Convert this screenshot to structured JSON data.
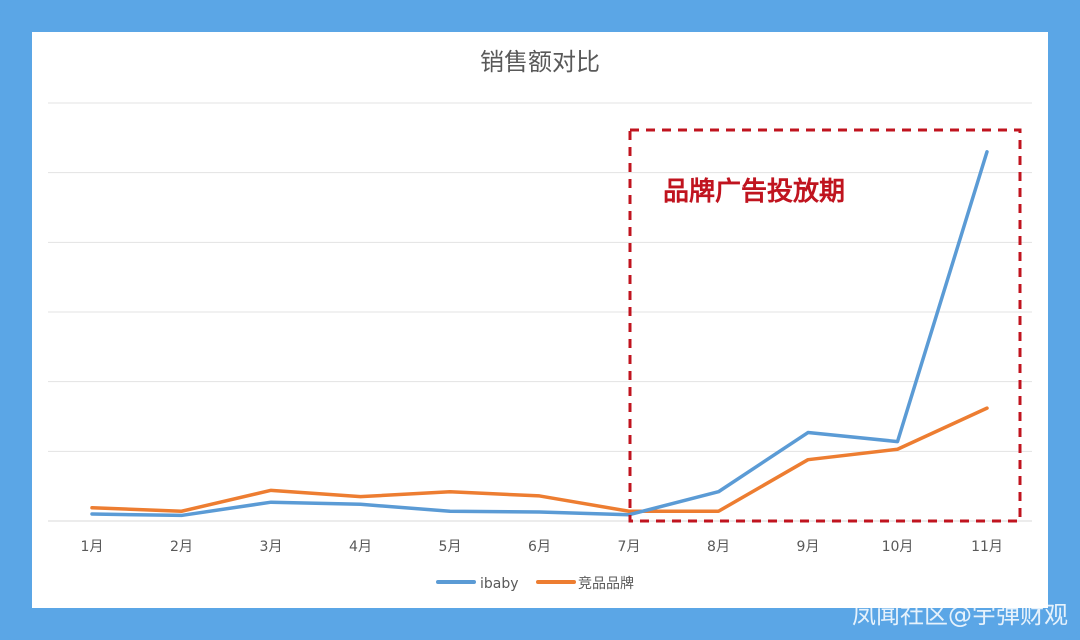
{
  "chart_data": {
    "type": "line",
    "title": "销售额对比",
    "categories": [
      "1月",
      "2月",
      "3月",
      "4月",
      "5月",
      "6月",
      "7月",
      "8月",
      "9月",
      "10月",
      "11月"
    ],
    "series": [
      {
        "name": "ibaby",
        "color": "#5b9bd5",
        "values": [
          1.0,
          0.8,
          2.7,
          2.4,
          1.4,
          1.3,
          0.9,
          4.2,
          12.7,
          11.4,
          53.0
        ]
      },
      {
        "name": "竞品品牌",
        "color": "#ed7d31",
        "values": [
          1.9,
          1.4,
          4.4,
          3.5,
          4.2,
          3.6,
          1.4,
          1.4,
          8.8,
          10.3,
          16.2
        ]
      }
    ],
    "ylim": [
      0,
      60
    ],
    "grid": true,
    "legend_position": "bottom",
    "annotation": {
      "text": "品牌广告投放期",
      "color": "#c0141f",
      "from_category": "7月",
      "to_category": "11月"
    }
  },
  "watermark": "凤闻社区@宇弹财观"
}
